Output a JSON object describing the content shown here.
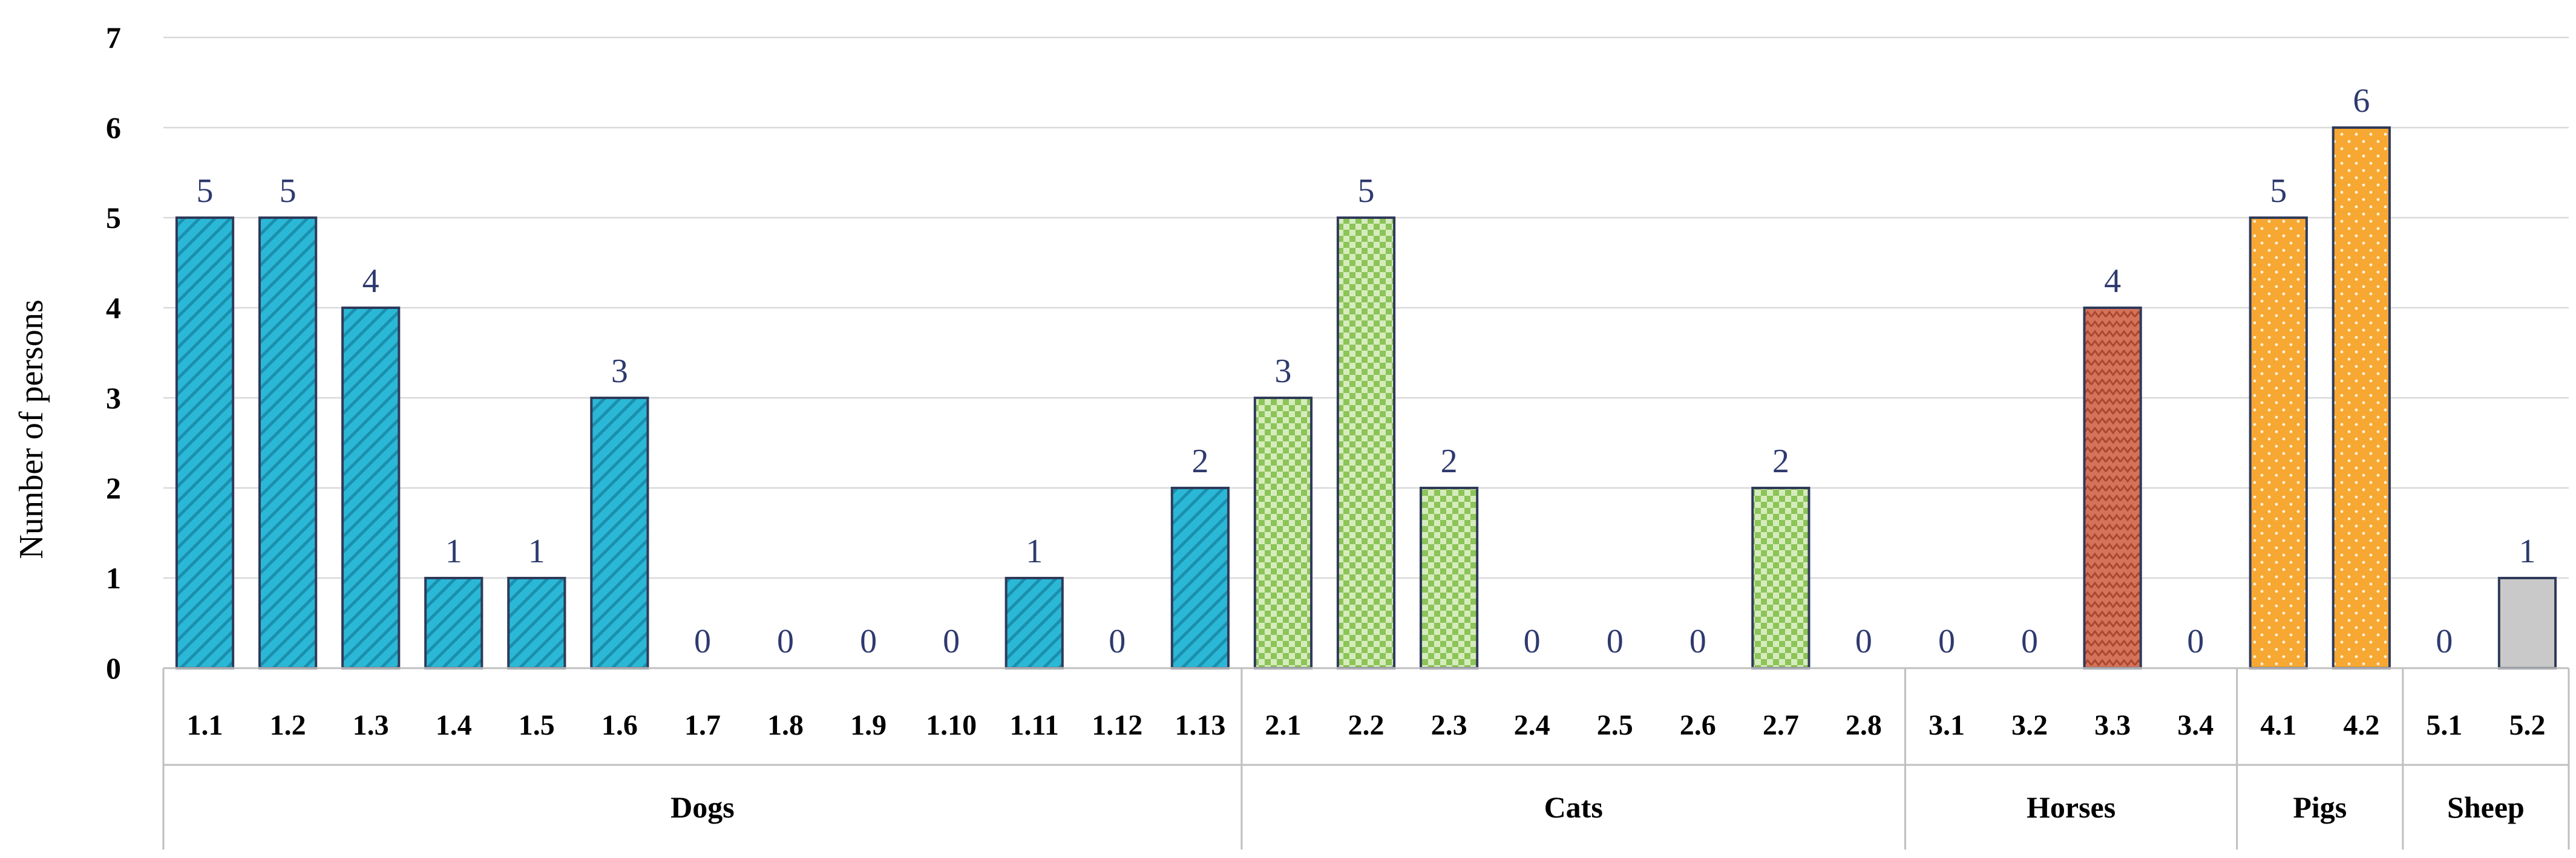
{
  "chart_data": {
    "type": "bar",
    "title": "",
    "ylabel": "Number of persons",
    "ylim": [
      0,
      7
    ],
    "yticks": [
      0,
      1,
      2,
      3,
      4,
      5,
      6,
      7
    ],
    "grid": true,
    "legend": "none",
    "groups": [
      {
        "name": "Dogs",
        "color": "#2ab8d6",
        "pattern": "diagonal-stripes",
        "categories": [
          "1.1",
          "1.2",
          "1.3",
          "1.4",
          "1.5",
          "1.6",
          "1.7",
          "1.8",
          "1.9",
          "1.10",
          "1.11",
          "1.12",
          "1.13"
        ],
        "values": [
          5,
          5,
          4,
          1,
          1,
          3,
          0,
          0,
          0,
          0,
          1,
          0,
          2
        ]
      },
      {
        "name": "Cats",
        "color": "#9ccd6a",
        "pattern": "checkerboard",
        "categories": [
          "2.1",
          "2.2",
          "2.3",
          "2.4",
          "2.5",
          "2.6",
          "2.7",
          "2.8"
        ],
        "values": [
          3,
          5,
          2,
          0,
          0,
          0,
          2,
          0
        ]
      },
      {
        "name": "Horses",
        "color": "#d4735a",
        "pattern": "zigzag",
        "categories": [
          "3.1",
          "3.2",
          "3.3",
          "3.4"
        ],
        "values": [
          0,
          0,
          4,
          0
        ]
      },
      {
        "name": "Pigs",
        "color": "#f7a832",
        "pattern": "dots",
        "categories": [
          "4.1",
          "4.2"
        ],
        "values": [
          5,
          6
        ]
      },
      {
        "name": "Sheep",
        "color": "#c9c9c9",
        "pattern": "solid",
        "categories": [
          "5.1",
          "5.2"
        ],
        "values": [
          0,
          1
        ]
      }
    ]
  }
}
